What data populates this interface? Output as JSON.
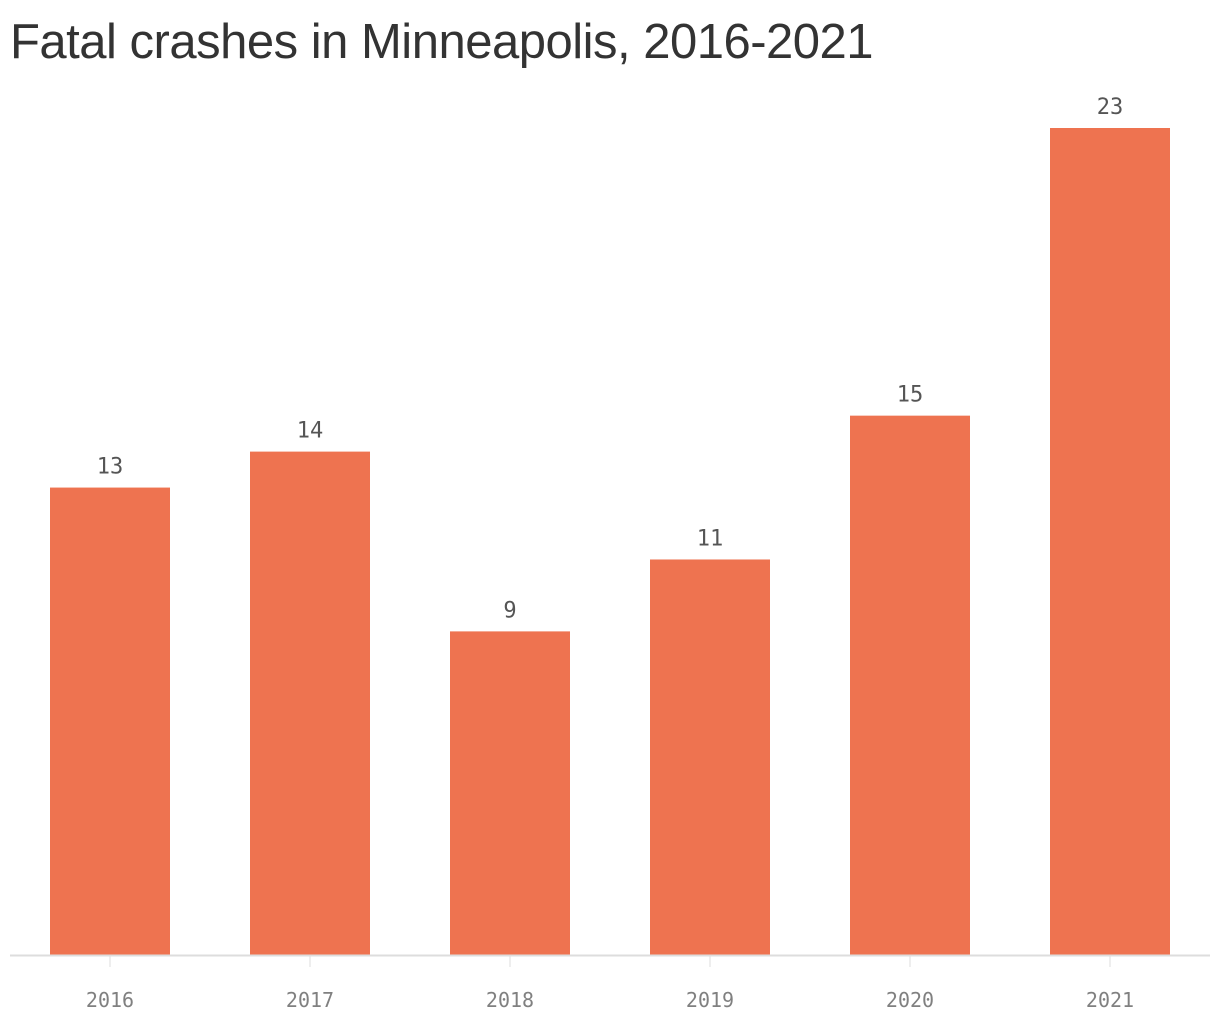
{
  "title": "Fatal crashes in Minneapolis, 2016-2021",
  "chart_data": {
    "type": "bar",
    "title": "Fatal crashes in Minneapolis, 2016-2021",
    "categories": [
      "2016",
      "2017",
      "2018",
      "2019",
      "2020",
      "2021"
    ],
    "values": [
      13,
      14,
      9,
      11,
      15,
      23
    ],
    "xlabel": "",
    "ylabel": "",
    "ylim": [
      0,
      23
    ],
    "data_labels": true,
    "grid": false,
    "bar_color": "#EE7350",
    "baseline_color": "#dddddd"
  }
}
